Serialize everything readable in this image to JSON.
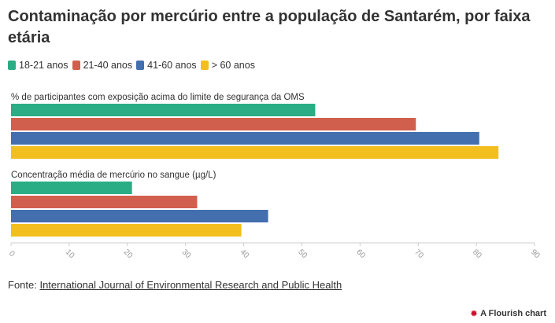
{
  "title": "Contaminação por mercúrio entre a população de Santarém, por faixa etária",
  "legend": [
    {
      "label": "18-21 anos",
      "color": "#2aad85"
    },
    {
      "label": "21-40 anos",
      "color": "#d15f4d"
    },
    {
      "label": "41-60 anos",
      "color": "#436fae"
    },
    {
      "label": "> 60 anos",
      "color": "#f2bf1e"
    }
  ],
  "source": {
    "prefix": "Fonte: ",
    "link": "International Journal of Environmental Research and Public Health"
  },
  "credit": {
    "icon": "flourish-logo-icon",
    "text": "A Flourish chart"
  },
  "chart_data": {
    "type": "bar",
    "orientation": "horizontal",
    "categories": [
      "% de participantes com exposição acima do limite de segurança da OMS",
      "Concentração média de mercúrio no sangue (µg/L)"
    ],
    "series": [
      {
        "name": "18-21 anos",
        "values": [
          52.3,
          20.8
        ]
      },
      {
        "name": "21-40 anos",
        "values": [
          69.6,
          32.0
        ]
      },
      {
        "name": "41-60 anos",
        "values": [
          80.5,
          44.2
        ]
      },
      {
        "name": "> 60 anos",
        "values": [
          83.8,
          39.6
        ]
      }
    ],
    "xlim": [
      0,
      90
    ],
    "xticks": [
      0,
      10,
      20,
      30,
      40,
      50,
      60,
      70,
      80,
      90
    ],
    "grid": false,
    "legend_position": "top-left"
  }
}
